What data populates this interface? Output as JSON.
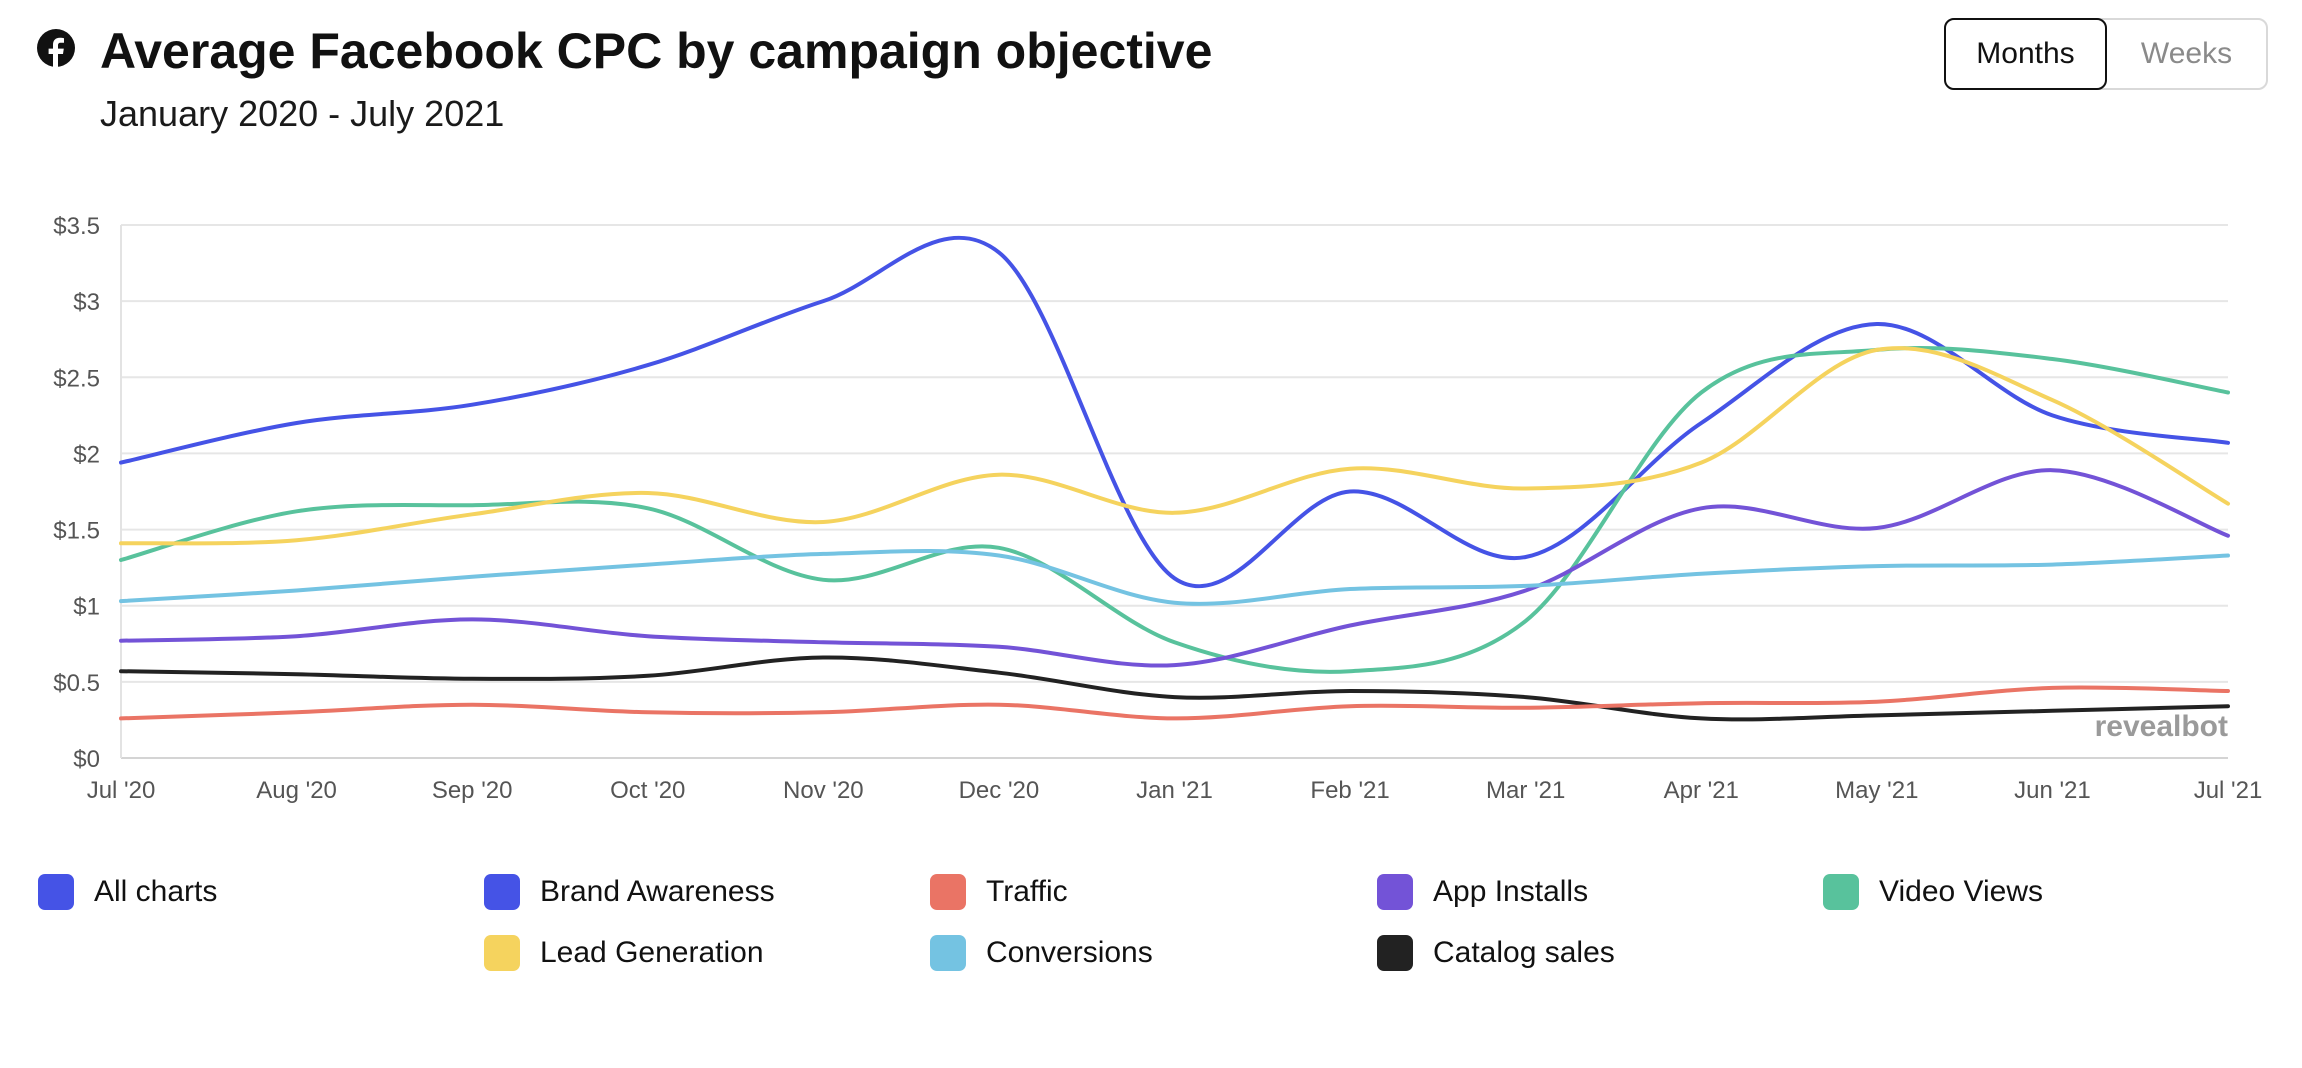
{
  "header": {
    "title": "Average Facebook CPC by campaign objective",
    "subtitle": "January 2020 - July 2021",
    "icon": "facebook-icon"
  },
  "toggle": {
    "months_label": "Months",
    "weeks_label": "Weeks",
    "selected": "Months"
  },
  "chart_data": {
    "type": "line",
    "title": "Average Facebook CPC by campaign objective",
    "subtitle": "January 2020 - July 2021",
    "categories": [
      "Jul '20",
      "Aug '20",
      "Sep '20",
      "Oct '20",
      "Nov '20",
      "Dec '20",
      "Jan '21",
      "Feb '21",
      "Mar '21",
      "Apr '21",
      "May '21",
      "Jun '21",
      "Jul '21"
    ],
    "y_ticks": [
      "$0",
      "$0.5",
      "$1",
      "$1.5",
      "$2",
      "$2.5",
      "$3",
      "$3.5"
    ],
    "ylim": [
      0,
      3.5
    ],
    "grid": true,
    "watermark": "revealbot",
    "series": [
      {
        "name": "Brand Awareness",
        "color": "#4553e6",
        "values": [
          1.94,
          2.2,
          2.32,
          2.58,
          3.0,
          3.32,
          1.18,
          1.75,
          1.32,
          2.2,
          2.85,
          2.25,
          2.07
        ]
      },
      {
        "name": "Video Views",
        "color": "#58c29c",
        "values": [
          1.3,
          1.62,
          1.66,
          1.64,
          1.17,
          1.38,
          0.76,
          0.57,
          0.9,
          2.4,
          2.68,
          2.62,
          2.4
        ]
      },
      {
        "name": "Lead Generation",
        "color": "#f5d35e",
        "values": [
          1.41,
          1.43,
          1.6,
          1.74,
          1.55,
          1.86,
          1.61,
          1.9,
          1.77,
          1.94,
          2.68,
          2.35,
          1.67
        ]
      },
      {
        "name": "App Installs",
        "color": "#7353d7",
        "values": [
          0.77,
          0.8,
          0.91,
          0.8,
          0.76,
          0.73,
          0.61,
          0.87,
          1.1,
          1.64,
          1.51,
          1.89,
          1.46
        ]
      },
      {
        "name": "Conversions",
        "color": "#74c3e2",
        "values": [
          1.03,
          1.1,
          1.19,
          1.27,
          1.34,
          1.33,
          1.02,
          1.11,
          1.13,
          1.21,
          1.26,
          1.27,
          1.33
        ]
      },
      {
        "name": "Catalog sales",
        "color": "#222222",
        "values": [
          0.57,
          0.55,
          0.52,
          0.54,
          0.66,
          0.56,
          0.4,
          0.44,
          0.4,
          0.26,
          0.28,
          0.31,
          0.34
        ]
      },
      {
        "name": "Traffic",
        "color": "#ea7465",
        "values": [
          0.26,
          0.3,
          0.35,
          0.3,
          0.3,
          0.35,
          0.26,
          0.34,
          0.33,
          0.36,
          0.37,
          0.46,
          0.44
        ]
      }
    ]
  },
  "legend": {
    "placement": "bottom",
    "items": [
      {
        "label": "All charts",
        "color": "#4553e6"
      },
      {
        "label": "Brand Awareness",
        "color": "#4553e6"
      },
      {
        "label": "Traffic",
        "color": "#ea7465"
      },
      {
        "label": "App Installs",
        "color": "#7353d7"
      },
      {
        "label": "Video Views",
        "color": "#58c29c"
      },
      {
        "label": "Lead Generation",
        "color": "#f5d35e"
      },
      {
        "label": "Conversions",
        "color": "#74c3e2"
      },
      {
        "label": "Catalog sales",
        "color": "#222222"
      }
    ]
  }
}
